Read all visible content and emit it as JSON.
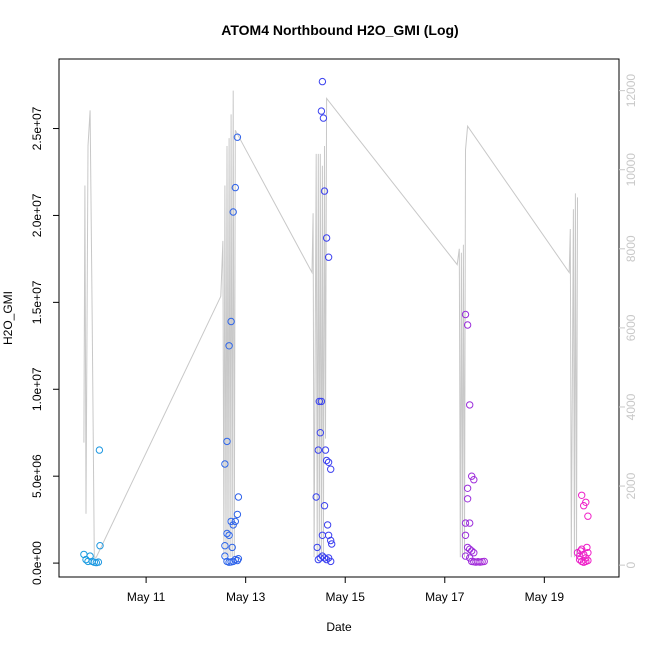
{
  "chart_data": {
    "type": "scatter",
    "title": "ATOM4 Northbound H2O_GMI (Log)",
    "xlabel": "Date",
    "ylabel": "H2O_GMI",
    "x_tick_labels": [
      "May 11",
      "May 13",
      "May 15",
      "May 17",
      "May 19"
    ],
    "x_ticks": [
      "2018-05-11",
      "2018-05-13",
      "2018-05-15",
      "2018-05-17",
      "2018-05-19"
    ],
    "xlim": [
      "2018-05-09T06:00",
      "2018-05-20T12:00"
    ],
    "y_tick_labels": [
      "0.0e+00",
      "5.0e+06",
      "1.0e+07",
      "1.5e+07",
      "2.0e+07",
      "2.5e+07"
    ],
    "y_ticks": [
      0,
      5000000,
      10000000,
      15000000,
      20000000,
      25000000
    ],
    "ylim": [
      -800000,
      29000000
    ],
    "y2_tick_labels": [
      "0",
      "2000",
      "4000",
      "6000",
      "8000",
      "10000",
      "12000"
    ],
    "y2_ticks": [
      0,
      2000,
      4000,
      6000,
      8000,
      10000,
      12000
    ],
    "y2lim": [
      -300,
      12800
    ],
    "grid": false,
    "legend": "none",
    "colors": {
      "points_start": "#1a9de0",
      "points_mid": "#3d3df0",
      "points_end": "#f020c8",
      "altitude_line": "#c8c8c8",
      "right_axis": "#c8c8c8"
    },
    "series": [
      {
        "kind": "points",
        "points": [
          [
            "2018-05-09T18:00",
            500000
          ],
          [
            "2018-05-09T19:00",
            200000
          ],
          [
            "2018-05-09T20:00",
            100000
          ],
          [
            "2018-05-09T21:00",
            400000
          ],
          [
            "2018-05-09T22:00",
            100000
          ],
          [
            "2018-05-09T23:00",
            50000
          ],
          [
            "2018-05-10T00:00",
            30000
          ],
          [
            "2018-05-10T01:00",
            60000
          ],
          [
            "2018-05-10T01:30",
            6500000
          ],
          [
            "2018-05-10T01:45",
            1000000
          ],
          [
            "2018-05-12T14:00",
            5700000
          ],
          [
            "2018-05-12T15:00",
            7000000
          ],
          [
            "2018-05-12T16:00",
            12500000
          ],
          [
            "2018-05-12T17:00",
            13900000
          ],
          [
            "2018-05-12T18:00",
            20200000
          ],
          [
            "2018-05-12T19:00",
            21600000
          ],
          [
            "2018-05-12T20:00",
            24500000
          ],
          [
            "2018-05-12T20:30",
            3800000
          ],
          [
            "2018-05-12T20:00",
            2800000
          ],
          [
            "2018-05-12T19:00",
            2400000
          ],
          [
            "2018-05-12T18:00",
            2200000
          ],
          [
            "2018-05-12T17:00",
            2400000
          ],
          [
            "2018-05-12T16:00",
            1600000
          ],
          [
            "2018-05-12T15:00",
            1700000
          ],
          [
            "2018-05-12T14:00",
            1000000
          ],
          [
            "2018-05-12T14:00",
            400000
          ],
          [
            "2018-05-12T15:00",
            100000
          ],
          [
            "2018-05-12T16:00",
            50000
          ],
          [
            "2018-05-12T17:00",
            70000
          ],
          [
            "2018-05-12T18:00",
            100000
          ],
          [
            "2018-05-12T19:00",
            200000
          ],
          [
            "2018-05-12T20:00",
            150000
          ],
          [
            "2018-05-12T20:30",
            250000
          ],
          [
            "2018-05-12T17:30",
            900000
          ],
          [
            "2018-05-14T10:00",
            3800000
          ],
          [
            "2018-05-14T11:00",
            6500000
          ],
          [
            "2018-05-14T11:30",
            9300000
          ],
          [
            "2018-05-14T12:00",
            7500000
          ],
          [
            "2018-05-14T12:30",
            26000000
          ],
          [
            "2018-05-14T13:00",
            27700000
          ],
          [
            "2018-05-14T13:30",
            25600000
          ],
          [
            "2018-05-14T14:00",
            21400000
          ],
          [
            "2018-05-14T15:00",
            18700000
          ],
          [
            "2018-05-14T16:00",
            17600000
          ],
          [
            "2018-05-14T14:30",
            6500000
          ],
          [
            "2018-05-14T15:00",
            5900000
          ],
          [
            "2018-05-14T16:00",
            5800000
          ],
          [
            "2018-05-14T17:00",
            5400000
          ],
          [
            "2018-05-14T14:00",
            3300000
          ],
          [
            "2018-05-14T15:30",
            2200000
          ],
          [
            "2018-05-14T13:00",
            1600000
          ],
          [
            "2018-05-14T16:00",
            1600000
          ],
          [
            "2018-05-14T17:00",
            1300000
          ],
          [
            "2018-05-14T17:30",
            1100000
          ],
          [
            "2018-05-14T10:30",
            900000
          ],
          [
            "2018-05-14T11:00",
            200000
          ],
          [
            "2018-05-14T12:00",
            300000
          ],
          [
            "2018-05-14T13:00",
            400000
          ],
          [
            "2018-05-14T14:00",
            300000
          ],
          [
            "2018-05-14T15:00",
            200000
          ],
          [
            "2018-05-14T16:00",
            300000
          ],
          [
            "2018-05-14T17:00",
            100000
          ],
          [
            "2018-05-14T12:30",
            9300000
          ],
          [
            "2018-05-17T10:00",
            14300000
          ],
          [
            "2018-05-17T11:00",
            13700000
          ],
          [
            "2018-05-17T12:00",
            9100000
          ],
          [
            "2018-05-17T13:00",
            5000000
          ],
          [
            "2018-05-17T14:00",
            4800000
          ],
          [
            "2018-05-17T11:00",
            4300000
          ],
          [
            "2018-05-17T11:00",
            3700000
          ],
          [
            "2018-05-17T10:00",
            2300000
          ],
          [
            "2018-05-17T12:00",
            2300000
          ],
          [
            "2018-05-17T10:00",
            1600000
          ],
          [
            "2018-05-17T11:00",
            900000
          ],
          [
            "2018-05-17T12:00",
            800000
          ],
          [
            "2018-05-17T13:00",
            700000
          ],
          [
            "2018-05-17T14:00",
            600000
          ],
          [
            "2018-05-17T10:00",
            400000
          ],
          [
            "2018-05-17T12:00",
            300000
          ],
          [
            "2018-05-17T13:00",
            100000
          ],
          [
            "2018-05-17T14:00",
            80000
          ],
          [
            "2018-05-17T15:00",
            60000
          ],
          [
            "2018-05-17T16:00",
            80000
          ],
          [
            "2018-05-17T17:00",
            60000
          ],
          [
            "2018-05-17T18:00",
            80000
          ],
          [
            "2018-05-17T19:00",
            100000
          ],
          [
            "2018-05-19T16:00",
            600000
          ],
          [
            "2018-05-19T17:00",
            400000
          ],
          [
            "2018-05-19T18:00",
            3900000
          ],
          [
            "2018-05-19T19:00",
            3300000
          ],
          [
            "2018-05-19T20:00",
            3500000
          ],
          [
            "2018-05-19T21:00",
            2700000
          ],
          [
            "2018-05-19T18:00",
            800000
          ],
          [
            "2018-05-19T19:00",
            500000
          ],
          [
            "2018-05-19T20:00",
            300000
          ],
          [
            "2018-05-19T21:00",
            600000
          ],
          [
            "2018-05-19T17:00",
            200000
          ],
          [
            "2018-05-19T18:00",
            100000
          ],
          [
            "2018-05-19T19:00",
            50000
          ],
          [
            "2018-05-19T20:00",
            100000
          ],
          [
            "2018-05-19T21:00",
            150000
          ],
          [
            "2018-05-19T17:30",
            700000
          ],
          [
            "2018-05-19T20:30",
            900000
          ]
        ]
      },
      {
        "kind": "altitude_line",
        "axis": "right",
        "points": [
          [
            "2018-05-09T18:00",
            3100
          ],
          [
            "2018-05-09T18:30",
            9600
          ],
          [
            "2018-05-09T19:00",
            1300
          ],
          [
            "2018-05-09T20:00",
            10600
          ],
          [
            "2018-05-09T21:00",
            11500
          ],
          [
            "2018-05-09T22:00",
            6200
          ],
          [
            "2018-05-09T23:00",
            200
          ],
          [
            "2018-05-10T00:00",
            200
          ],
          [
            "2018-05-12T12:00",
            6800
          ],
          [
            "2018-05-12T13:00",
            8200
          ],
          [
            "2018-05-12T13:30",
            200
          ],
          [
            "2018-05-12T14:00",
            9600
          ],
          [
            "2018-05-12T14:30",
            200
          ],
          [
            "2018-05-12T15:00",
            10600
          ],
          [
            "2018-05-12T15:30",
            200
          ],
          [
            "2018-05-12T16:00",
            10800
          ],
          [
            "2018-05-12T16:30",
            200
          ],
          [
            "2018-05-12T17:00",
            11400
          ],
          [
            "2018-05-12T17:30",
            200
          ],
          [
            "2018-05-12T18:00",
            12000
          ],
          [
            "2018-05-12T18:30",
            200
          ],
          [
            "2018-05-12T19:00",
            11000
          ],
          [
            "2018-05-14T08:00",
            7400
          ],
          [
            "2018-05-14T08:30",
            8900
          ],
          [
            "2018-05-14T09:00",
            200
          ],
          [
            "2018-05-14T10:00",
            10400
          ],
          [
            "2018-05-14T10:30",
            200
          ],
          [
            "2018-05-14T11:00",
            10400
          ],
          [
            "2018-05-14T11:30",
            200
          ],
          [
            "2018-05-14T12:00",
            10400
          ],
          [
            "2018-05-14T12:30",
            200
          ],
          [
            "2018-05-14T13:00",
            10100
          ],
          [
            "2018-05-14T13:30",
            200
          ],
          [
            "2018-05-14T14:00",
            10600
          ],
          [
            "2018-05-14T14:30",
            3200
          ],
          [
            "2018-05-14T15:00",
            11800
          ],
          [
            "2018-05-17T06:00",
            7600
          ],
          [
            "2018-05-17T07:00",
            8000
          ],
          [
            "2018-05-17T07:30",
            200
          ],
          [
            "2018-05-17T08:00",
            7900
          ],
          [
            "2018-05-17T08:30",
            200
          ],
          [
            "2018-05-17T09:00",
            8100
          ],
          [
            "2018-05-17T09:30",
            200
          ],
          [
            "2018-05-17T10:00",
            10500
          ],
          [
            "2018-05-17T11:00",
            11100
          ],
          [
            "2018-05-19T12:00",
            7400
          ],
          [
            "2018-05-19T12:30",
            8500
          ],
          [
            "2018-05-19T13:00",
            200
          ],
          [
            "2018-05-19T14:00",
            9000
          ],
          [
            "2018-05-19T14:30",
            200
          ],
          [
            "2018-05-19T15:00",
            9400
          ],
          [
            "2018-05-19T15:30",
            200
          ],
          [
            "2018-05-19T16:00",
            9300
          ]
        ]
      }
    ]
  }
}
